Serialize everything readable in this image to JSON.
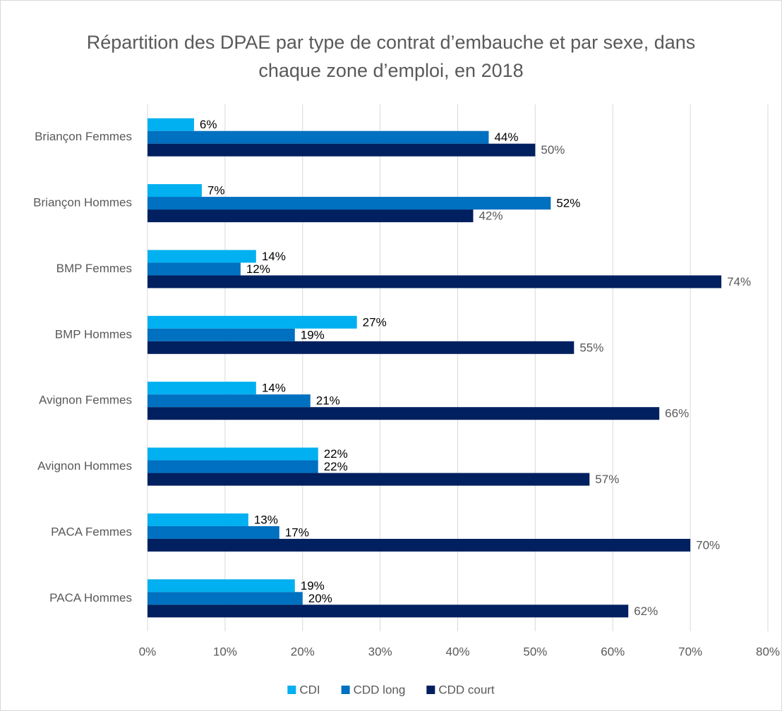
{
  "chart_data": {
    "type": "hbar",
    "title": "Répartition des DPAE par type de contrat d’embauche et par sexe, dans chaque zone d’emploi, en 2018",
    "categories": [
      "Briançon Femmes",
      "Briançon Hommes",
      "BMP Femmes",
      "BMP Hommes",
      "Avignon Femmes",
      "Avignon Hommes",
      "PACA Femmes",
      "PACA Hommes"
    ],
    "series": [
      {
        "name": "CDI",
        "color": "#00b0f0",
        "values": [
          6,
          7,
          14,
          27,
          14,
          22,
          13,
          19
        ],
        "value_labels": [
          "6%",
          "7%",
          "14%",
          "27%",
          "14%",
          "22%",
          "13%",
          "19%"
        ],
        "label_color": "#000000"
      },
      {
        "name": "CDD long",
        "color": "#0070c0",
        "values": [
          44,
          52,
          12,
          19,
          21,
          22,
          17,
          20
        ],
        "value_labels": [
          "44%",
          "52%",
          "12%",
          "19%",
          "21%",
          "22%",
          "17%",
          "20%"
        ],
        "label_color": "#000000"
      },
      {
        "name": "CDD court",
        "color": "#002060",
        "values": [
          50,
          42,
          74,
          55,
          66,
          57,
          70,
          62
        ],
        "value_labels": [
          "50%",
          "42%",
          "74%",
          "55%",
          "66%",
          "57%",
          "70%",
          "62%"
        ],
        "label_color": "#595959"
      }
    ],
    "xlim": [
      0,
      80
    ],
    "xticks": [
      {
        "value": 0,
        "label": "0%"
      },
      {
        "value": 10,
        "label": "10%"
      },
      {
        "value": 20,
        "label": "20%"
      },
      {
        "value": 30,
        "label": "30%"
      },
      {
        "value": 40,
        "label": "40%"
      },
      {
        "value": 50,
        "label": "50%"
      },
      {
        "value": 60,
        "label": "60%"
      },
      {
        "value": 70,
        "label": "70%"
      },
      {
        "value": 80,
        "label": "80%"
      }
    ],
    "grid": true,
    "legend": "bottom"
  }
}
